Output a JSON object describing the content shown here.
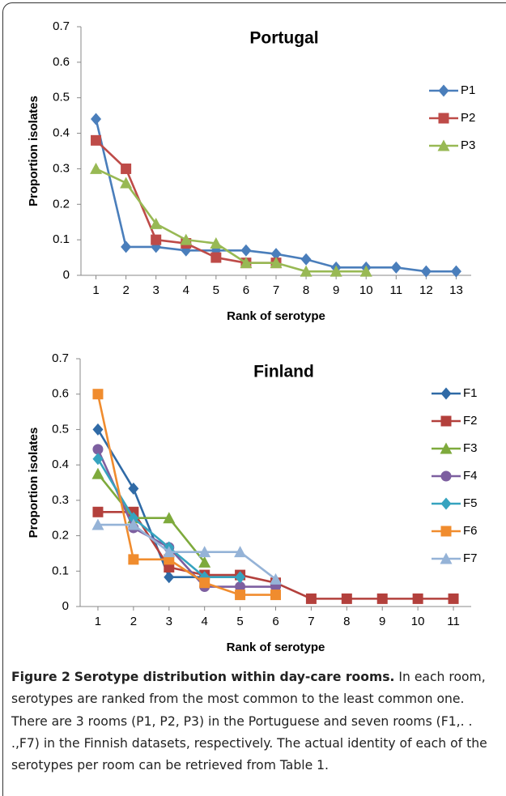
{
  "chart_data": [
    {
      "type": "line",
      "title": "Portugal",
      "x_label": "Rank of serotype",
      "y_label": "Proportion isolates",
      "x": [
        1,
        2,
        3,
        4,
        5,
        6,
        7,
        8,
        9,
        10,
        11,
        12,
        13
      ],
      "ylim": [
        0,
        0.7
      ],
      "yticks": [
        0,
        0.1,
        0.2,
        0.3,
        0.4,
        0.5,
        0.6,
        0.7
      ],
      "legend": "right",
      "series": [
        {
          "name": "P1",
          "color": "#4a7ebb",
          "marker": "diamond",
          "values": [
            0.44,
            0.08,
            0.08,
            0.07,
            0.07,
            0.07,
            0.06,
            0.045,
            0.022,
            0.022,
            0.022,
            0.011,
            0.011
          ]
        },
        {
          "name": "P2",
          "color": "#be4b48",
          "marker": "square",
          "values": [
            0.38,
            0.3,
            0.1,
            0.09,
            0.05,
            0.035,
            0.035,
            null,
            null,
            null,
            null,
            null,
            null
          ]
        },
        {
          "name": "P3",
          "color": "#98b954",
          "marker": "triangle",
          "values": [
            0.3,
            0.26,
            0.145,
            0.1,
            0.09,
            0.035,
            0.035,
            0.011,
            0.011,
            0.011,
            null,
            null,
            null
          ]
        }
      ]
    },
    {
      "type": "line",
      "title": "Finland",
      "x_label": "Rank of serotype",
      "y_label": "Proportion isolates",
      "x": [
        1,
        2,
        3,
        4,
        5,
        6,
        7,
        8,
        9,
        10,
        11
      ],
      "ylim": [
        0,
        0.7
      ],
      "yticks": [
        0,
        0.1,
        0.2,
        0.3,
        0.4,
        0.5,
        0.6,
        0.7
      ],
      "legend": "right",
      "series": [
        {
          "name": "F1",
          "color": "#2f6aa6",
          "marker": "diamond",
          "values": [
            0.5,
            0.333,
            0.083,
            0.083,
            0.083,
            null,
            null,
            null,
            null,
            null,
            null
          ]
        },
        {
          "name": "F2",
          "color": "#b3403c",
          "marker": "square",
          "values": [
            0.267,
            0.267,
            0.111,
            0.089,
            0.089,
            0.067,
            0.022,
            0.022,
            0.022,
            0.022,
            0.022
          ]
        },
        {
          "name": "F3",
          "color": "#7eaa3c",
          "marker": "triangle",
          "values": [
            0.375,
            0.25,
            0.25,
            0.125,
            null,
            null,
            null,
            null,
            null,
            null,
            null
          ]
        },
        {
          "name": "F4",
          "color": "#7d5fa0",
          "marker": "circle",
          "values": [
            0.444,
            0.222,
            0.167,
            0.056,
            0.056,
            0.056,
            null,
            null,
            null,
            null,
            null
          ]
        },
        {
          "name": "F5",
          "color": "#36a3bf",
          "marker": "diamond",
          "values": [
            0.417,
            0.25,
            0.167,
            0.083,
            0.083,
            null,
            null,
            null,
            null,
            null,
            null
          ]
        },
        {
          "name": "F6",
          "color": "#f08c2e",
          "marker": "square",
          "values": [
            0.6,
            0.133,
            0.133,
            0.067,
            0.033,
            0.033,
            null,
            null,
            null,
            null,
            null
          ]
        },
        {
          "name": "F7",
          "color": "#95b3d7",
          "marker": "triangle",
          "values": [
            0.231,
            0.231,
            0.154,
            0.154,
            0.154,
            0.077,
            null,
            null,
            null,
            null,
            null
          ]
        }
      ]
    }
  ],
  "caption": {
    "label": "Figure 2",
    "title": "Serotype distribution within day-care rooms.",
    "text": "In each room, serotypes are ranked from the most common to the least common one. There are 3 rooms (P1, P2, P3) in the Portuguese and seven rooms (F1,. . .,F7) in the Finnish datasets, respectively. The actual identity of each of the serotypes per room can be retrieved from Table 1."
  }
}
